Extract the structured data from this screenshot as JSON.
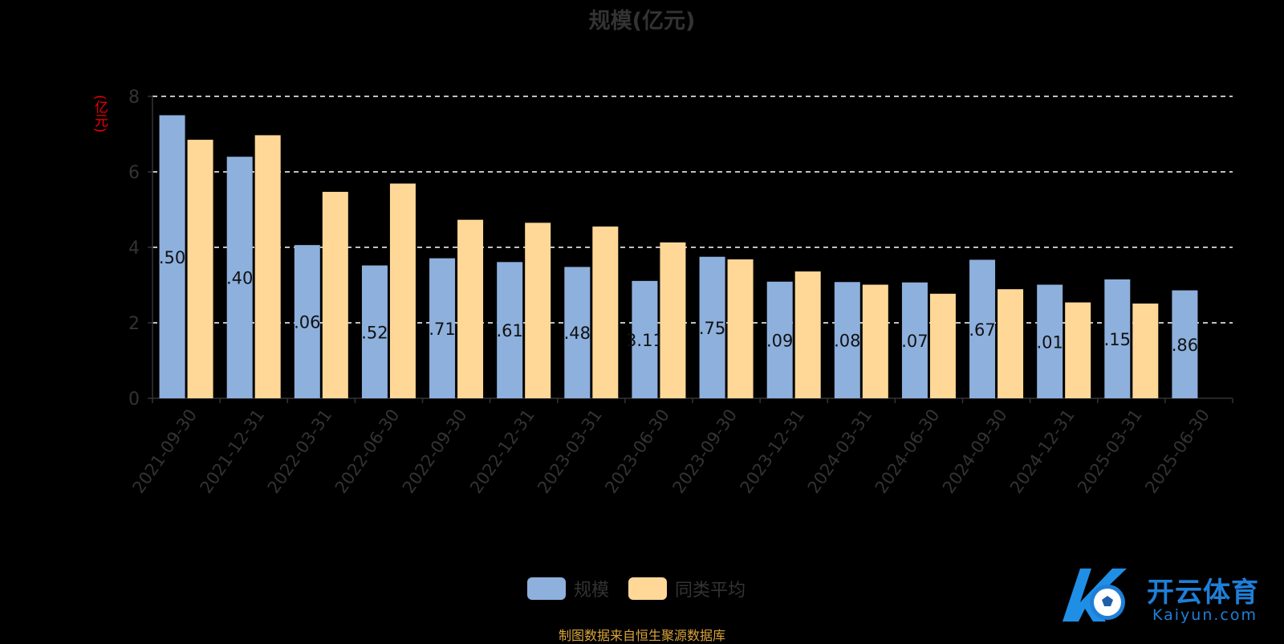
{
  "chart_data": {
    "type": "bar",
    "title": "规模(亿元)",
    "ylabel": "(亿元)",
    "ylim": [
      0,
      8
    ],
    "yticks": [
      0,
      2,
      4,
      6,
      8
    ],
    "grid": true,
    "legend_position": "bottom",
    "categories": [
      "2021-09-30",
      "2021-12-31",
      "2022-03-31",
      "2022-06-30",
      "2022-09-30",
      "2022-12-31",
      "2023-03-31",
      "2023-06-30",
      "2023-09-30",
      "2023-12-31",
      "2024-03-31",
      "2024-06-30",
      "2024-09-30",
      "2024-12-31",
      "2025-03-31",
      "2025-06-30"
    ],
    "series": [
      {
        "name": "规模",
        "color": "#8eb0dd",
        "values": [
          7.5,
          6.4,
          4.06,
          3.52,
          3.71,
          3.61,
          3.48,
          3.11,
          3.75,
          3.09,
          3.08,
          3.07,
          3.67,
          3.01,
          3.15,
          2.86
        ],
        "labels": [
          ".50",
          ".40",
          ".06",
          ".52",
          ".71",
          ".61",
          ".48",
          "3.11",
          ".75",
          ".09",
          ".08",
          ".07",
          ".67",
          ".01",
          ".15",
          ".86"
        ]
      },
      {
        "name": "同类平均",
        "color": "#ffd898",
        "values": [
          6.85,
          6.97,
          5.47,
          5.69,
          4.73,
          4.65,
          4.55,
          4.13,
          3.68,
          3.36,
          3.01,
          2.77,
          2.89,
          2.54,
          2.51,
          null
        ]
      }
    ]
  },
  "footer": {
    "source": "制图数据来自恒生聚源数据库"
  },
  "watermark": {
    "cn": "开云体育",
    "en": "Kaiyun.com"
  }
}
